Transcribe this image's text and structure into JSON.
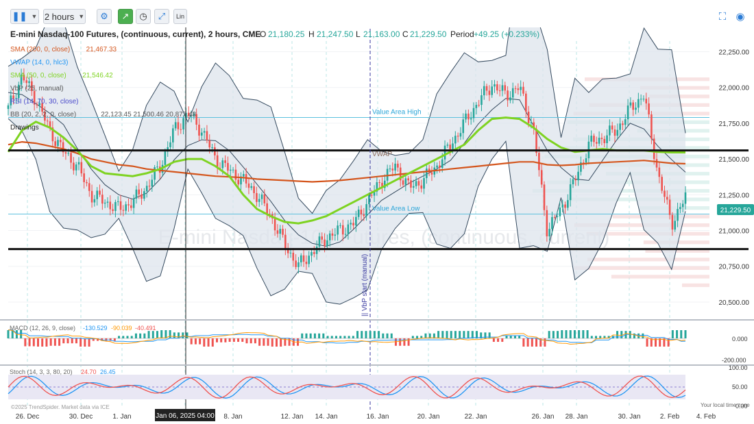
{
  "toolbar": {
    "interval": "2 hours",
    "scale_label": "Lin"
  },
  "header": {
    "title": "E-mini Nasdaq-100 Futures, (continuous, current), 2 hours, CME",
    "o_label": "O",
    "open": "21,180.25",
    "h_label": "H",
    "high": "21,247.50",
    "l_label": "L",
    "low": "21,163.00",
    "c_label": "C",
    "close": "21,229.50",
    "period_label": "Period",
    "period_change": "+49.25 (+0.233%)"
  },
  "indicators": [
    {
      "label": "SMA (200, 0, close)",
      "value": "21,467.33",
      "color": "#d4551c"
    },
    {
      "label": "VWAP (14, 0, hlc3)",
      "value": "",
      "color": "#2196f3"
    },
    {
      "label": "SMA (50, 0, close)",
      "value": "21,546.42",
      "color": "#7ed321"
    },
    {
      "label": "VbP (25, manual)",
      "value": "",
      "color": "#555555"
    },
    {
      "label": "RSI (14, 70, 30, close)",
      "value": "",
      "color": "#4a4acb"
    },
    {
      "label": "BB (20, 2, 2, 0, close)",
      "value": "22,123.45 21,500.46 20,877.48",
      "color": "#555555"
    },
    {
      "label": "Drawings",
      "value": "",
      "color": "#222222"
    }
  ],
  "watermark": "E-mini Nasdaq-100 Futures, (continuous, current)",
  "annotations": {
    "value_area_high": "Value Area High",
    "value_area_low": "Value Area Low",
    "vwap_tag": "VWAP",
    "vbp_start": "|| VbP start (manual)"
  },
  "price_badge": "21,229.50",
  "macd": {
    "label": "MACD (12, 26, 9, close)",
    "v1": "-130.529",
    "v2": "-90.039",
    "v3": "-40.491",
    "axis": [
      "0.000",
      "-200.000"
    ]
  },
  "stoch": {
    "label": "Stoch (14, 3, 3, 80, 20)",
    "k": "24.70",
    "d": "26.45",
    "axis": [
      "100.00",
      "50.00",
      "0.00"
    ]
  },
  "footer": {
    "copyright": "©2025 TrendSpider. Market data via ICE",
    "local_time": "Your local time zone",
    "crosshair_time": "Jan 06, 2025 04:00"
  },
  "colors": {
    "up": "#26a69a",
    "down": "#ef5350",
    "sma200": "#d4551c",
    "sma50": "#7ed321",
    "bb": "#34495e",
    "bbfill": "#d4dde6",
    "value_area": "#5bc0de",
    "accent": "#2a7bd5"
  },
  "chart_data": {
    "type": "line",
    "instrument": "E-mini Nasdaq-100 Futures",
    "y_axis_ticks": [
      22250,
      22000,
      21750,
      21500,
      21250,
      21000,
      20750,
      20500
    ],
    "ylim": [
      20380,
      22420
    ],
    "x_tick_labels": [
      "26. Dec",
      "30. Dec",
      "1. Jan",
      "Jan 06, 2025 04:00",
      "8. Jan",
      "12. Jan",
      "14. Jan",
      "16. Jan",
      "20. Jan",
      "22. Jan",
      "26. Jan",
      "28. Jan",
      "30. Jan",
      "2. Feb",
      "4. Feb"
    ],
    "horizontal_levels": [
      {
        "name": "upper drawn line",
        "value": 21560
      },
      {
        "name": "lower drawn line",
        "value": 20870
      },
      {
        "name": "Value Area High",
        "value": 21790
      },
      {
        "name": "Value Area Low",
        "value": 21115
      }
    ],
    "series": [
      {
        "name": "Price (approx. closes)",
        "values": [
          21850,
          22080,
          21920,
          21700,
          21550,
          21450,
          21250,
          21200,
          21150,
          21200,
          21300,
          21450,
          21700,
          21820,
          21700,
          21500,
          21420,
          21350,
          21250,
          21100,
          20900,
          20750,
          20850,
          20950,
          21000,
          21050,
          21200,
          21350,
          21450,
          21300,
          21350,
          21450,
          21600,
          21750,
          21900,
          22020,
          21950,
          22000,
          21700,
          21000,
          21150,
          21350,
          21600,
          21650,
          21700,
          21850,
          21950,
          21400,
          21050,
          21230
        ]
      },
      {
        "name": "SMA (200, 0, close)",
        "values": [
          21600,
          21620,
          21610,
          21590,
          21570,
          21540,
          21500,
          21480,
          21460,
          21450,
          21430,
          21420,
          21410,
          21400,
          21390,
          21380,
          21375,
          21370,
          21360,
          21355,
          21350,
          21345,
          21340,
          21345,
          21350,
          21360,
          21370,
          21380,
          21390,
          21400,
          21410,
          21420,
          21430,
          21440,
          21450,
          21460,
          21470,
          21480,
          21480,
          21460,
          21455,
          21460,
          21470,
          21475,
          21480,
          21485,
          21490,
          21480,
          21470,
          21467
        ]
      },
      {
        "name": "SMA (50, 0, close)",
        "values": [
          21550,
          21700,
          21760,
          21720,
          21650,
          21560,
          21450,
          21400,
          21390,
          21380,
          21400,
          21430,
          21480,
          21500,
          21500,
          21450,
          21380,
          21250,
          21150,
          21100,
          21060,
          21050,
          21070,
          21100,
          21150,
          21200,
          21250,
          21300,
          21350,
          21400,
          21450,
          21500,
          21550,
          21600,
          21700,
          21780,
          21790,
          21780,
          21720,
          21640,
          21580,
          21550,
          21560,
          21570,
          21560,
          21560,
          21560,
          21550,
          21546,
          21546
        ]
      }
    ],
    "macd_values": {
      "macd": -130.529,
      "signal": -90.039,
      "hist": -40.491
    },
    "stoch_values": {
      "k": 24.7,
      "d": 26.45,
      "upper": 80,
      "lower": 20
    }
  }
}
